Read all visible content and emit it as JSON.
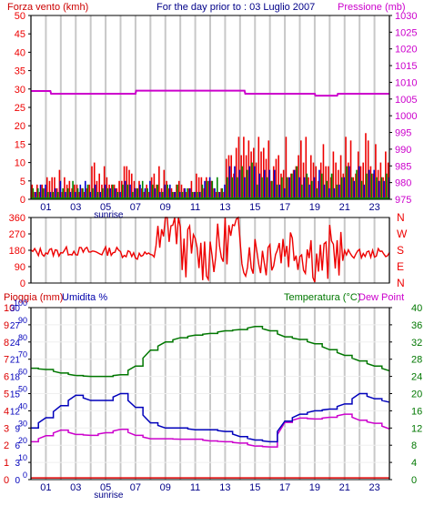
{
  "header": {
    "wind_label": "Forza vento (kmh)",
    "title": "For the day prior to : 03 Luglio 2007",
    "pressure_label": "Pressione (mb)"
  },
  "lower_header": {
    "rain_label": "Pioggia (mm)",
    "humidity_label": "Umidita %",
    "temp_label": "Temperatura (°C)",
    "dew_label": "Dew Point"
  },
  "sunrise_label": "sunrise",
  "hour_ticks": [
    "01",
    "03",
    "05",
    "07",
    "09",
    "11",
    "13",
    "15",
    "17",
    "19",
    "21",
    "23"
  ],
  "compass_ticks": [
    "N",
    "W",
    "S",
    "E",
    "N"
  ],
  "chart_data": [
    {
      "type": "bar",
      "name": "wind",
      "title": "For the day prior to : 03 Luglio 2007",
      "ylabel": "Forza vento (kmh)",
      "y2label": "Pressione (mb)",
      "ylim": [
        0,
        50
      ],
      "y2lim": [
        975,
        1030
      ],
      "yticks": [
        0,
        5,
        10,
        15,
        20,
        25,
        30,
        35,
        40,
        45,
        50
      ],
      "y2ticks": [
        975,
        980,
        985,
        990,
        995,
        1000,
        1005,
        1010,
        1015,
        1020,
        1025,
        1030
      ],
      "xlabels": [
        "01",
        "03",
        "05",
        "07",
        "09",
        "11",
        "13",
        "15",
        "17",
        "19",
        "21",
        "23"
      ],
      "gust_hourly_max": [
        6,
        8,
        6,
        6,
        12,
        6,
        10,
        6,
        10,
        6,
        6,
        10,
        6,
        18,
        19,
        17,
        15,
        17,
        18,
        16,
        15,
        18,
        19,
        15
      ],
      "speed_hourly_avg": [
        4,
        4,
        4,
        4,
        4,
        4,
        4,
        4,
        4,
        4,
        4,
        5,
        5,
        8,
        8,
        8,
        7,
        8,
        8,
        8,
        7,
        8,
        8,
        7
      ],
      "pressure": [
        {
          "t": 0.0,
          "v": 1007.4
        },
        {
          "t": 1.3,
          "v": 1007.4
        },
        {
          "t": 1.35,
          "v": 1006.6
        },
        {
          "t": 7.0,
          "v": 1006.6
        },
        {
          "t": 7.05,
          "v": 1007.5
        },
        {
          "t": 14.3,
          "v": 1007.5
        },
        {
          "t": 14.35,
          "v": 1006.6
        },
        {
          "t": 19.0,
          "v": 1006.6
        },
        {
          "t": 19.05,
          "v": 1006.0
        },
        {
          "t": 20.5,
          "v": 1006.0
        },
        {
          "t": 20.55,
          "v": 1006.6
        },
        {
          "t": 24.0,
          "v": 1006.6
        }
      ],
      "grid": true
    },
    {
      "type": "line",
      "name": "wind_direction",
      "yticks": [
        0,
        90,
        180,
        270,
        360
      ],
      "ylim": [
        0,
        360
      ],
      "hourly_direction": [
        170,
        170,
        175,
        175,
        170,
        175,
        165,
        150,
        200,
        320,
        180,
        150,
        180,
        250,
        180,
        160,
        200,
        210,
        175,
        120,
        180,
        160,
        160,
        165
      ],
      "right_labels": [
        "N",
        "W",
        "S",
        "E",
        "N"
      ],
      "grid": true
    },
    {
      "type": "line",
      "name": "temp_humidity_rain",
      "left_axes": {
        "rain_ticks": [
          0,
          1,
          2,
          3,
          4,
          5,
          6,
          7,
          8,
          9,
          10
        ],
        "humidity_ticks": [
          0,
          10,
          20,
          30,
          40,
          50,
          60,
          70,
          80,
          90,
          100
        ],
        "labels_stacked": [
          "0",
          "1",
          "2",
          "3",
          "4",
          "5",
          "6",
          "7",
          "8",
          "9",
          "10"
        ]
      },
      "left_stacked_tick_labels": [
        "0",
        "3",
        "6",
        "9",
        "12",
        "15",
        "18",
        "21",
        "24",
        "27",
        "30"
      ],
      "humidity_ticks_shown": [
        "0",
        "10",
        "20",
        "30",
        "40",
        "50",
        "60",
        "70",
        "80",
        "90",
        "100"
      ],
      "rain_ticks_shown": [
        "0",
        "1",
        "2",
        "3",
        "4",
        "5",
        "6",
        "7",
        "8",
        "9",
        "10"
      ],
      "right_ticks": [
        0,
        4,
        8,
        12,
        16,
        20,
        24,
        28,
        32,
        36,
        40
      ],
      "ylim_left": [
        0,
        30
      ],
      "ylim_right": [
        0,
        40
      ],
      "series": [
        {
          "name": "Temperatura (°C)",
          "axis": "right",
          "color": "#007700",
          "points": [
            [
              0,
              25.9
            ],
            [
              1,
              25.6
            ],
            [
              2,
              24.8
            ],
            [
              3,
              24.2
            ],
            [
              4,
              24.0
            ],
            [
              5,
              24.0
            ],
            [
              6,
              24.4
            ],
            [
              7,
              26.4
            ],
            [
              8,
              30.1
            ],
            [
              9,
              32.0
            ],
            [
              10,
              33.0
            ],
            [
              11,
              33.6
            ],
            [
              12,
              34.0
            ],
            [
              13,
              34.6
            ],
            [
              14,
              34.9
            ],
            [
              15,
              35.6
            ],
            [
              16,
              34.6
            ],
            [
              17,
              33.2
            ],
            [
              18,
              32.6
            ],
            [
              19,
              31.6
            ],
            [
              20,
              30.2
            ],
            [
              21,
              28.9
            ],
            [
              22,
              27.6
            ],
            [
              23,
              26.4
            ],
            [
              24,
              25.3
            ]
          ]
        },
        {
          "name": "Dew Point",
          "axis": "right",
          "color": "#cc00cc",
          "points": [
            [
              0,
              8.8
            ],
            [
              1,
              10.2
            ],
            [
              2,
              11.5
            ],
            [
              3,
              10.5
            ],
            [
              4,
              10.3
            ],
            [
              5,
              10.9
            ],
            [
              6,
              11.7
            ],
            [
              7,
              10.3
            ],
            [
              8,
              9.5
            ],
            [
              9,
              9.5
            ],
            [
              10,
              9.4
            ],
            [
              11,
              9.4
            ],
            [
              12,
              9.0
            ],
            [
              13,
              8.8
            ],
            [
              14,
              8.5
            ],
            [
              15,
              7.8
            ],
            [
              16,
              7.6
            ],
            [
              17,
              13.3
            ],
            [
              18,
              14.3
            ],
            [
              19,
              14.1
            ],
            [
              20,
              14.5
            ],
            [
              21,
              15.2
            ],
            [
              22,
              13.8
            ],
            [
              23,
              13.1
            ],
            [
              24,
              11.8
            ]
          ]
        },
        {
          "name": "Umidita %",
          "axis": "humidity",
          "color": "#0000bb",
          "points": [
            [
              0,
              30
            ],
            [
              1,
              36
            ],
            [
              2,
              43
            ],
            [
              3,
              49
            ],
            [
              4,
              46
            ],
            [
              5,
              46
            ],
            [
              6,
              50
            ],
            [
              7,
              42
            ],
            [
              8,
              33
            ],
            [
              9,
              30
            ],
            [
              10,
              30
            ],
            [
              11,
              29
            ],
            [
              12,
              29
            ],
            [
              13,
              28
            ],
            [
              14,
              25
            ],
            [
              15,
              23
            ],
            [
              16,
              22
            ],
            [
              17,
              34
            ],
            [
              18,
              38
            ],
            [
              19,
              40
            ],
            [
              20,
              41
            ],
            [
              21,
              44
            ],
            [
              22,
              50
            ],
            [
              23,
              47
            ],
            [
              24,
              45
            ]
          ]
        },
        {
          "name": "Pioggia (mm)",
          "axis": "rain",
          "color": "#dd0000",
          "points": [
            [
              0,
              0.1
            ],
            [
              24,
              0.1
            ]
          ]
        }
      ],
      "xlabels": [
        "01",
        "03",
        "05",
        "07",
        "09",
        "11",
        "13",
        "15",
        "17",
        "19",
        "21",
        "23"
      ],
      "grid": true
    }
  ],
  "colors": {
    "wind_gust": "#ee0000",
    "wind_speed_blue": "#0000cc",
    "wind_speed_green": "#008800",
    "pressure": "#cc00cc",
    "direction": "#ee0000",
    "humidity": "#0000bb",
    "temperature": "#007700",
    "dew": "#cc00cc",
    "rain": "#dd0000",
    "grid": "#c8c8c8",
    "frame": "#000000"
  }
}
